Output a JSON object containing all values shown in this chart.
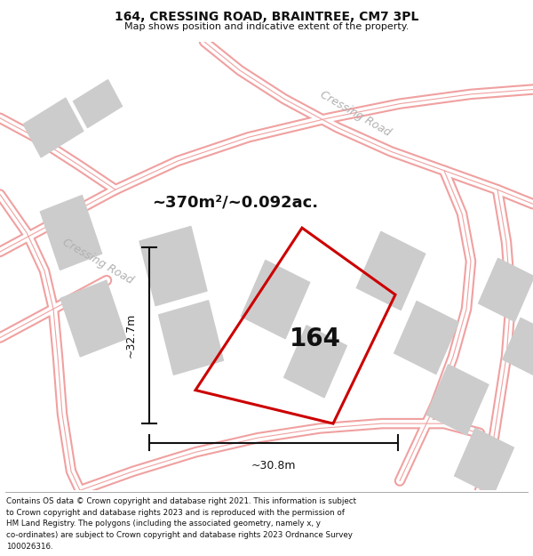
{
  "title": "164, CRESSING ROAD, BRAINTREE, CM7 3PL",
  "subtitle": "Map shows position and indicative extent of the property.",
  "copy_lines": [
    "Contains OS data © Crown copyright and database right 2021. This information is subject",
    "to Crown copyright and database rights 2023 and is reproduced with the permission of",
    "HM Land Registry. The polygons (including the associated geometry, namely x, y",
    "co-ordinates) are subject to Crown copyright and database rights 2023 Ordnance Survey",
    "100026316."
  ],
  "area_text": "~370m²/~0.092ac.",
  "property_label": "164",
  "dim_vertical": "~32.7m",
  "dim_horizontal": "~30.8m",
  "road_label_1": "Cressing Road",
  "road_label_2": "Cressing Road",
  "property_color": "#cc0000",
  "dim_line_color": "#111111",
  "text_color": "#111111",
  "road_color": "#f0a0a0",
  "building_color": "#cccccc",
  "road_lw_outer": 9,
  "road_lw_inner": 6
}
